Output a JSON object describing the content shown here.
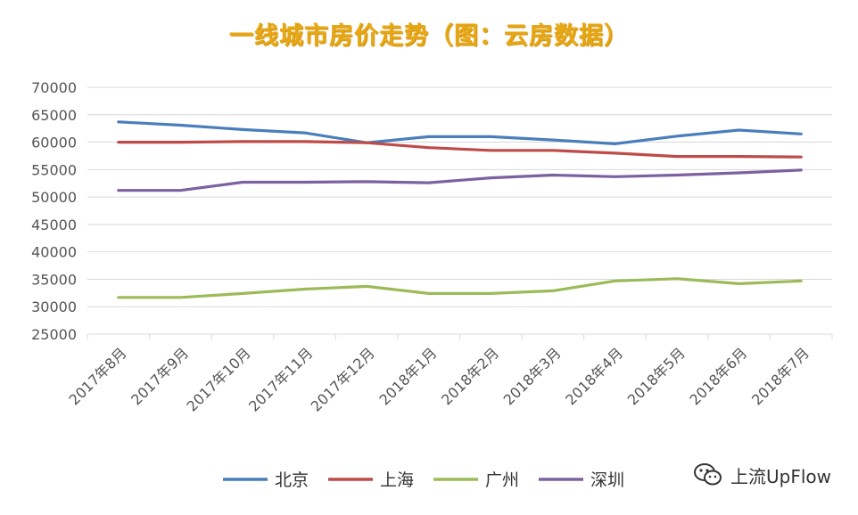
{
  "chart_data": {
    "type": "line",
    "title": "一线城市房价走势（图：云房数据）",
    "categories": [
      "2017年8月",
      "2017年9月",
      "2017年10月",
      "2017年11月",
      "2017年12月",
      "2018年1月",
      "2018年2月",
      "2018年3月",
      "2018年4月",
      "2018年5月",
      "2018年6月",
      "2018年7月"
    ],
    "ylim": [
      25000,
      70000
    ],
    "yticks": [
      25000,
      30000,
      35000,
      40000,
      45000,
      50000,
      55000,
      60000,
      65000,
      70000
    ],
    "ytick_labels": [
      "25000",
      "30000",
      "35000",
      "40000",
      "45000",
      "50000",
      "55000",
      "60000",
      "65000",
      "70000"
    ],
    "grid": true,
    "legend_position": "bottom",
    "series": [
      {
        "name": "北京",
        "color": "#4a7ebb",
        "values": [
          63700,
          63100,
          62300,
          61700,
          59900,
          61000,
          61000,
          60400,
          59700,
          61100,
          62200,
          61500
        ]
      },
      {
        "name": "上海",
        "color": "#be4b48",
        "values": [
          60000,
          60000,
          60100,
          60100,
          59900,
          59000,
          58500,
          58500,
          58000,
          57400,
          57400,
          57300
        ]
      },
      {
        "name": "广州",
        "color": "#9bbb59",
        "values": [
          31700,
          31700,
          32400,
          33200,
          33700,
          32400,
          32400,
          32900,
          34700,
          35100,
          34200,
          34700
        ]
      },
      {
        "name": "深圳",
        "color": "#7d60a0",
        "values": [
          51200,
          51200,
          52700,
          52700,
          52800,
          52600,
          53500,
          54000,
          53700,
          54000,
          54400,
          54900
        ]
      }
    ]
  },
  "watermark": {
    "text": "上流UpFlow",
    "icon": "wechat-icon"
  }
}
